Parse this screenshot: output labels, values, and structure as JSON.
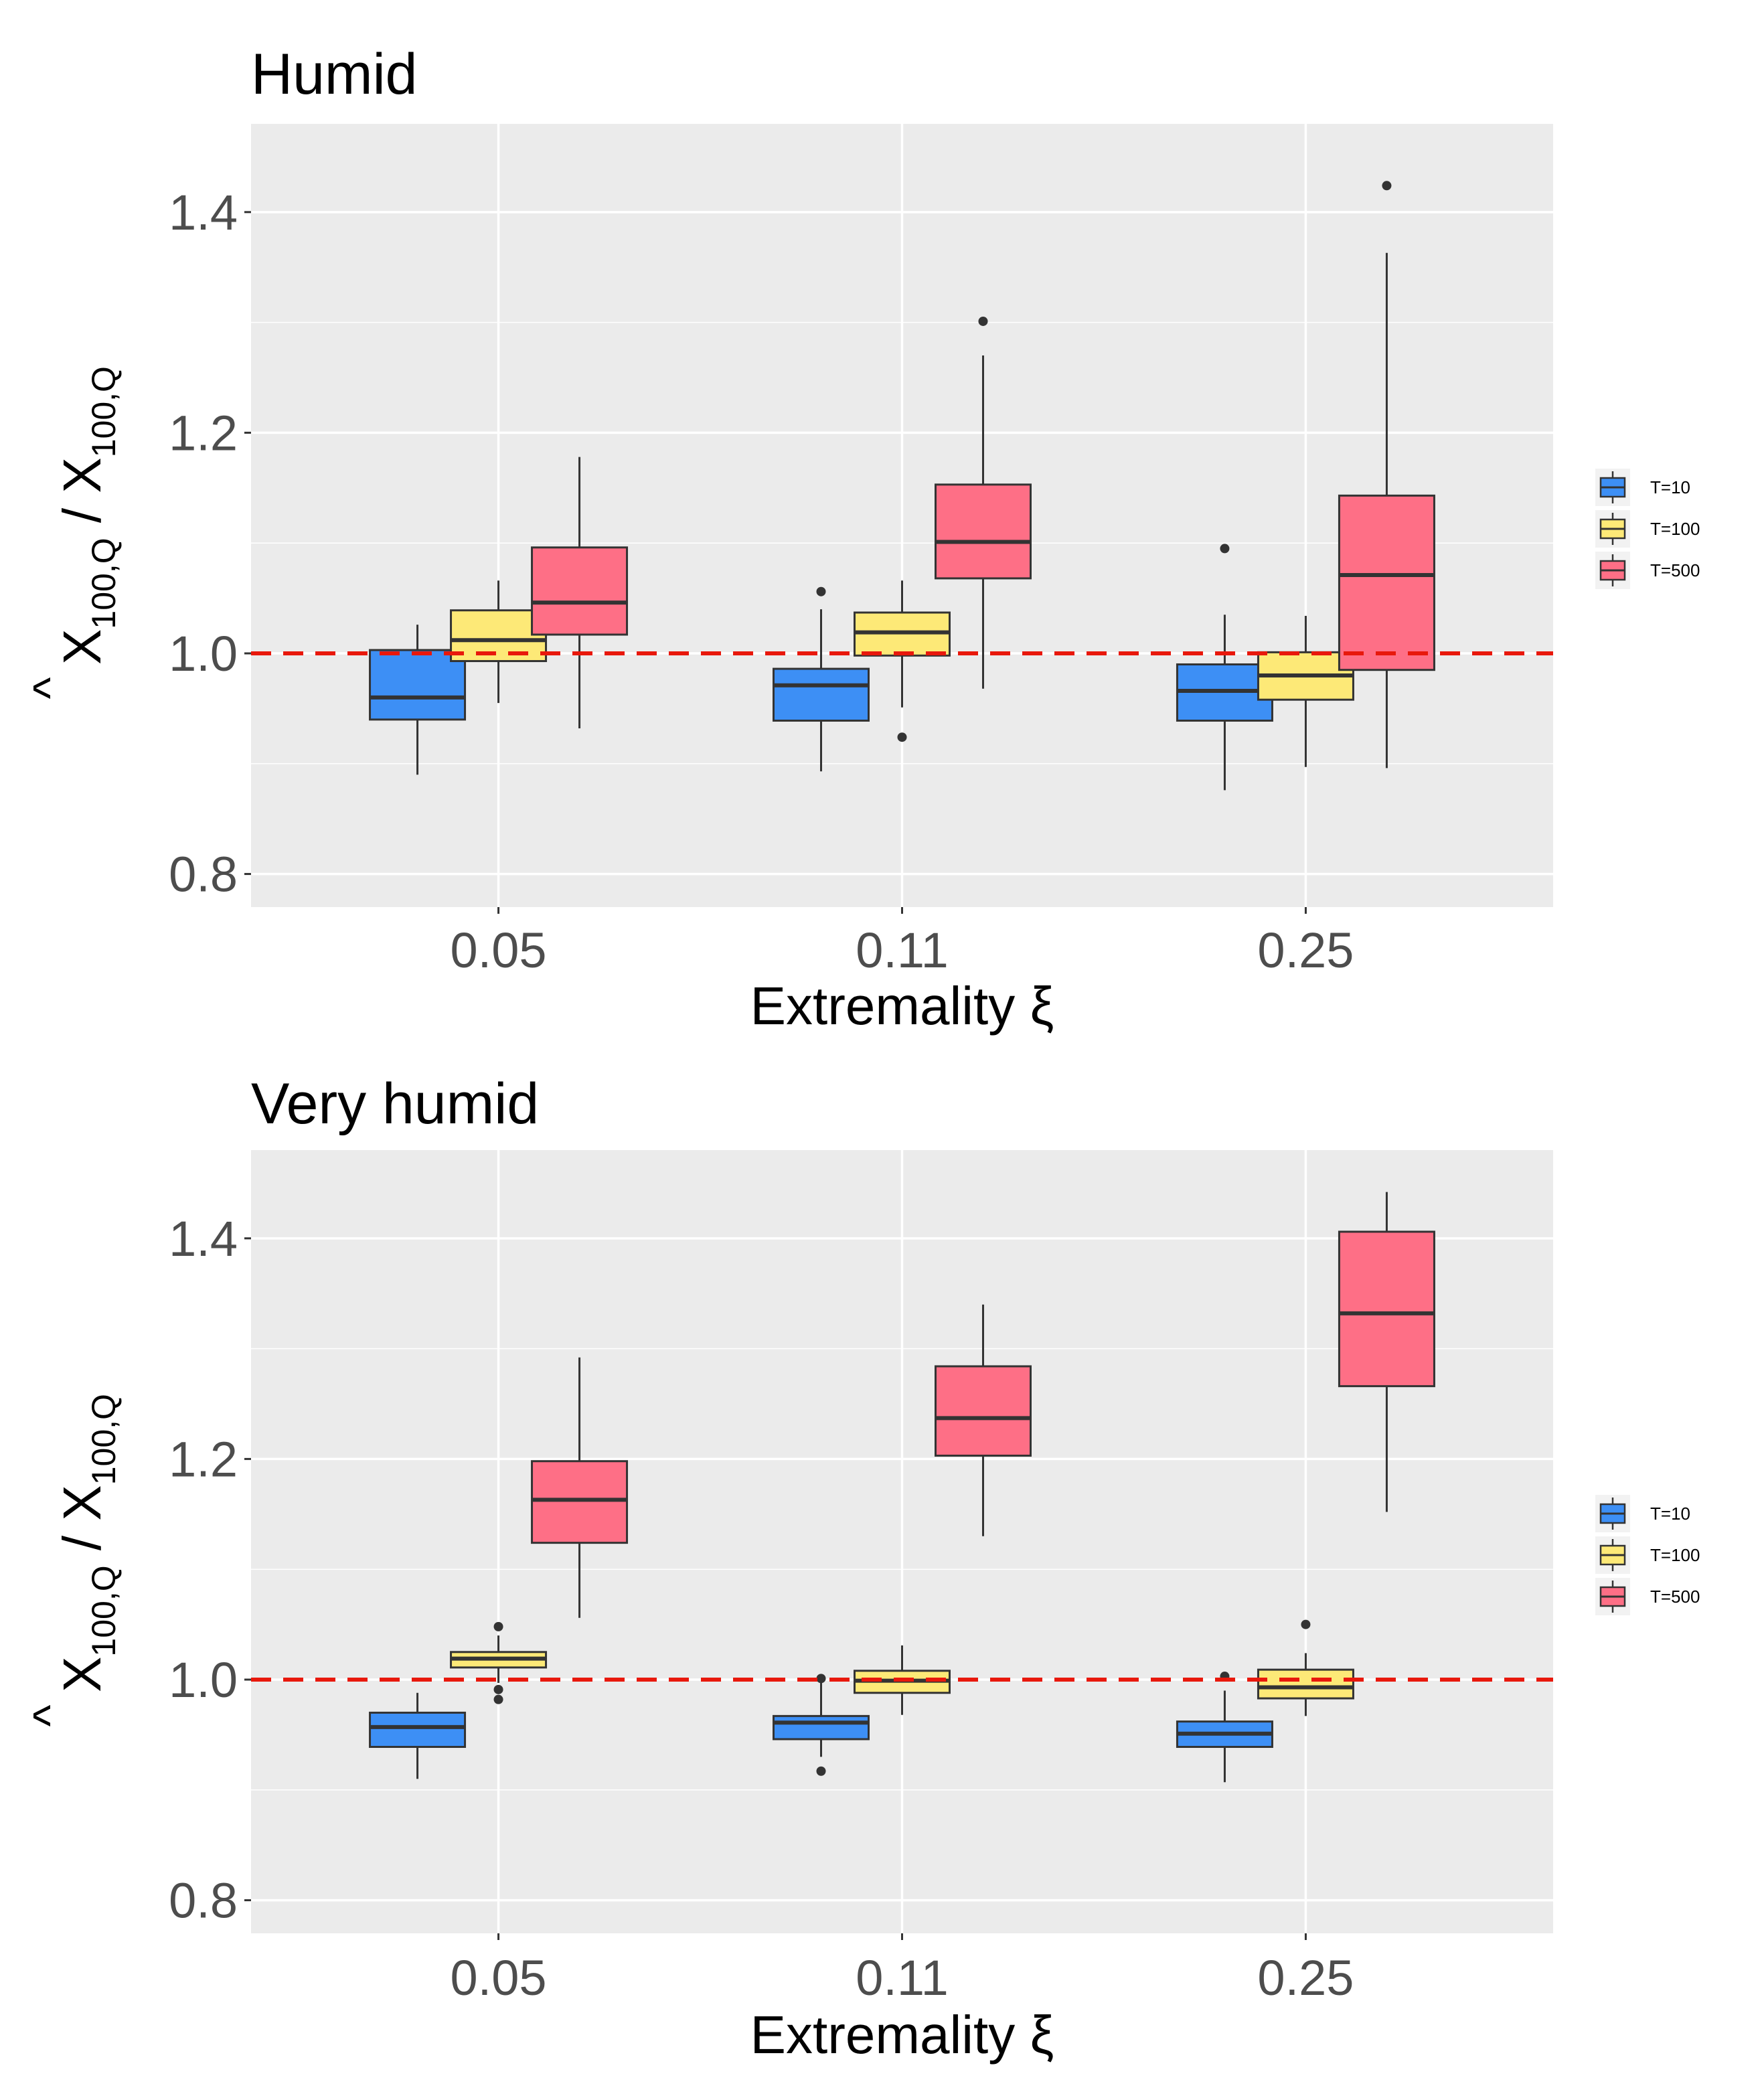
{
  "chart_data": [
    {
      "type": "boxplot",
      "title": "Humid",
      "xlabel": "Extremality ξ",
      "ylabel": {
        "hat_symbol": "^",
        "numerator": "X",
        "numerator_sub": "100,Q",
        "separator": " / ",
        "denominator": "X",
        "denominator_sub": "100,Q"
      },
      "ylim": [
        0.77,
        1.48
      ],
      "yticks": [
        0.8,
        1.0,
        1.2,
        1.4
      ],
      "ytick_labels": [
        "0.8",
        "1.0",
        "1.2",
        "1.4"
      ],
      "categories": [
        "0.05",
        "0.11",
        "0.25"
      ],
      "reference_line": {
        "y": 1.0,
        "style": "dashed",
        "color": "#e8180c"
      },
      "legend": {
        "position": "right",
        "entries": [
          "T=10",
          "T=100",
          "T=500"
        ]
      },
      "series": [
        {
          "name": "T=10",
          "color": "#3d8ff5",
          "boxes": [
            {
              "min": 0.89,
              "q1": 0.94,
              "median": 0.96,
              "q3": 1.003,
              "max": 1.026,
              "outliers": []
            },
            {
              "min": 0.893,
              "q1": 0.939,
              "median": 0.971,
              "q3": 0.986,
              "max": 1.04,
              "outliers": [
                1.056
              ]
            },
            {
              "min": 0.876,
              "q1": 0.939,
              "median": 0.966,
              "q3": 0.99,
              "max": 1.035,
              "outliers": [
                1.095
              ]
            }
          ]
        },
        {
          "name": "T=100",
          "color": "#fde977",
          "boxes": [
            {
              "min": 0.955,
              "q1": 0.993,
              "median": 1.012,
              "q3": 1.039,
              "max": 1.066,
              "outliers": []
            },
            {
              "min": 0.951,
              "q1": 0.998,
              "median": 1.019,
              "q3": 1.037,
              "max": 1.066,
              "outliers": [
                0.924
              ]
            },
            {
              "min": 0.897,
              "q1": 0.958,
              "median": 0.98,
              "q3": 1.001,
              "max": 1.034,
              "outliers": []
            }
          ]
        },
        {
          "name": "T=500",
          "color": "#fe6f86",
          "boxes": [
            {
              "min": 0.932,
              "q1": 1.017,
              "median": 1.046,
              "q3": 1.096,
              "max": 1.178,
              "outliers": []
            },
            {
              "min": 0.968,
              "q1": 1.068,
              "median": 1.101,
              "q3": 1.153,
              "max": 1.27,
              "outliers": [
                1.301
              ]
            },
            {
              "min": 0.896,
              "q1": 0.985,
              "median": 1.071,
              "q3": 1.143,
              "max": 1.363,
              "outliers": [
                1.424
              ]
            }
          ]
        }
      ]
    },
    {
      "type": "boxplot",
      "title": "Very humid",
      "xlabel": "Extremality ξ",
      "ylabel": {
        "hat_symbol": "^",
        "numerator": "X",
        "numerator_sub": "100,Q",
        "separator": " / ",
        "denominator": "X",
        "denominator_sub": "100,Q"
      },
      "ylim": [
        0.77,
        1.48
      ],
      "yticks": [
        0.8,
        1.0,
        1.2,
        1.4
      ],
      "ytick_labels": [
        "0.8",
        "1.0",
        "1.2",
        "1.4"
      ],
      "categories": [
        "0.05",
        "0.11",
        "0.25"
      ],
      "reference_line": {
        "y": 1.0,
        "style": "dashed",
        "color": "#e8180c"
      },
      "legend": {
        "position": "right",
        "entries": [
          "T=10",
          "T=100",
          "T=500"
        ]
      },
      "series": [
        {
          "name": "T=10",
          "color": "#3d8ff5",
          "boxes": [
            {
              "min": 0.91,
              "q1": 0.939,
              "median": 0.957,
              "q3": 0.97,
              "max": 0.988,
              "outliers": []
            },
            {
              "min": 0.93,
              "q1": 0.946,
              "median": 0.961,
              "q3": 0.967,
              "max": 0.998,
              "outliers": [
                0.917,
                1.001
              ]
            },
            {
              "min": 0.907,
              "q1": 0.939,
              "median": 0.951,
              "q3": 0.962,
              "max": 0.99,
              "outliers": [
                1.003
              ]
            }
          ]
        },
        {
          "name": "T=100",
          "color": "#fde977",
          "boxes": [
            {
              "min": 0.997,
              "q1": 1.011,
              "median": 1.019,
              "q3": 1.025,
              "max": 1.04,
              "outliers": [
                1.048,
                0.991,
                0.982
              ]
            },
            {
              "min": 0.968,
              "q1": 0.988,
              "median": 0.999,
              "q3": 1.008,
              "max": 1.031,
              "outliers": []
            },
            {
              "min": 0.967,
              "q1": 0.983,
              "median": 0.993,
              "q3": 1.009,
              "max": 1.024,
              "outliers": [
                1.05
              ]
            }
          ]
        },
        {
          "name": "T=500",
          "color": "#fe6f86",
          "boxes": [
            {
              "min": 1.056,
              "q1": 1.124,
              "median": 1.163,
              "q3": 1.198,
              "max": 1.292,
              "outliers": []
            },
            {
              "min": 1.13,
              "q1": 1.203,
              "median": 1.237,
              "q3": 1.284,
              "max": 1.34,
              "outliers": []
            },
            {
              "min": 1.152,
              "q1": 1.266,
              "median": 1.332,
              "q3": 1.406,
              "max": 1.442,
              "outliers": []
            }
          ]
        }
      ]
    }
  ]
}
